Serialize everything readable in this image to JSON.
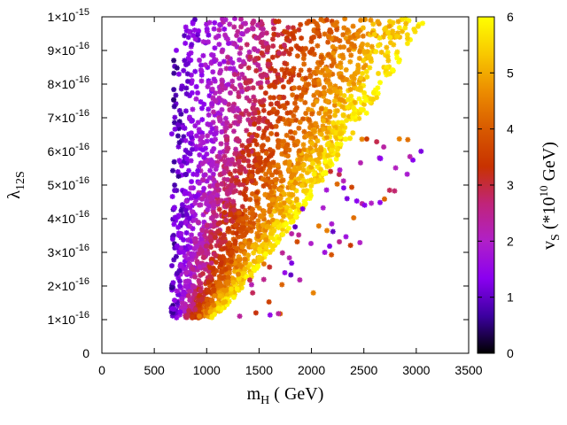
{
  "chart_data": {
    "type": "scatter",
    "title": "",
    "xlabel": {
      "main": "m",
      "sub": "H",
      "rest": " ( GeV)"
    },
    "ylabel": {
      "main": "λ",
      "sub": "12S"
    },
    "colorbar_label": {
      "main": "v",
      "sub": "S",
      "open": " (*10",
      "sup": "10",
      "close": " GeV)"
    },
    "xlim": [
      0,
      3500
    ],
    "ylim": [
      0,
      1e-15
    ],
    "clim": [
      0,
      6
    ],
    "x_ticks": [
      {
        "value": 0,
        "label": "0"
      },
      {
        "value": 500,
        "label": "500"
      },
      {
        "value": 1000,
        "label": "1000"
      },
      {
        "value": 1500,
        "label": "1500"
      },
      {
        "value": 2000,
        "label": "2000"
      },
      {
        "value": 2500,
        "label": "2500"
      },
      {
        "value": 3000,
        "label": "3000"
      },
      {
        "value": 3500,
        "label": "3500"
      }
    ],
    "y_ticks": [
      {
        "value": 0,
        "mant": "0",
        "exp": ""
      },
      {
        "value": 1e-16,
        "mant": "1×10",
        "exp": "-16"
      },
      {
        "value": 2e-16,
        "mant": "2×10",
        "exp": "-16"
      },
      {
        "value": 3e-16,
        "mant": "3×10",
        "exp": "-16"
      },
      {
        "value": 4e-16,
        "mant": "4×10",
        "exp": "-16"
      },
      {
        "value": 5e-16,
        "mant": "5×10",
        "exp": "-16"
      },
      {
        "value": 6e-16,
        "mant": "6×10",
        "exp": "-16"
      },
      {
        "value": 7e-16,
        "mant": "7×10",
        "exp": "-16"
      },
      {
        "value": 8e-16,
        "mant": "8×10",
        "exp": "-16"
      },
      {
        "value": 9e-16,
        "mant": "9×10",
        "exp": "-16"
      },
      {
        "value": 1e-15,
        "mant": "1×10",
        "exp": "-15"
      }
    ],
    "c_ticks": [
      {
        "value": 0,
        "label": "0"
      },
      {
        "value": 1,
        "label": "1"
      },
      {
        "value": 2,
        "label": "2"
      },
      {
        "value": 3,
        "label": "3"
      },
      {
        "value": 4,
        "label": "4"
      },
      {
        "value": 5,
        "label": "5"
      },
      {
        "value": 6,
        "label": "6"
      }
    ],
    "colormap": [
      "#000000",
      "#3c00a0",
      "#8a00f0",
      "#b020c8",
      "#c0247a",
      "#c83200",
      "#d85a00",
      "#ec8c00",
      "#f8c800",
      "#ffff00"
    ],
    "scatter_model": {
      "point_count": 2600,
      "seed": 13,
      "y_range": [
        1.05e-16,
        1e-15
      ],
      "x_min": 660,
      "frontier_x_at_ymin": 1050,
      "frontier_x_at_ymax": 3100,
      "vS_range": [
        0.8,
        5.9
      ],
      "outlier_count": 70
    }
  }
}
